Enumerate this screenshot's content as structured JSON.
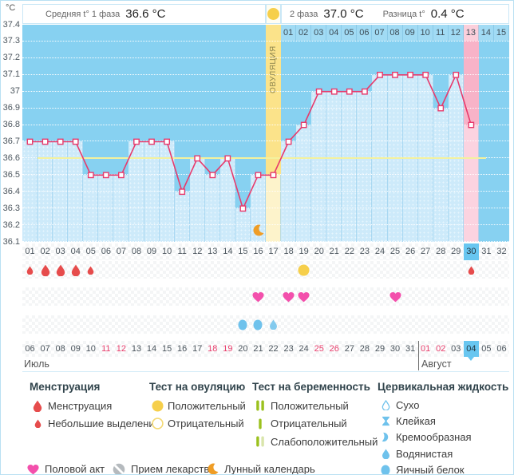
{
  "header": {
    "unit": "°C",
    "phase1_label": "Средняя t° 1 фаза",
    "phase1_value": "36.6 °C",
    "phase2_label": "2 фаза",
    "phase2_value": "37.0 °C",
    "diff_label": "Разница t°",
    "diff_value": "0.4 °C",
    "ovulation_label": "ОВУЛЯЦИЯ"
  },
  "chart_data": {
    "type": "line",
    "ylabel": "°C",
    "ylim": [
      36.1,
      37.4
    ],
    "yticks": [
      "37.4",
      "37.3",
      "37.2",
      "37.1",
      "37",
      "36.9",
      "36.8",
      "36.7",
      "36.6",
      "36.5",
      "36.4",
      "36.3",
      "36.2",
      "36.1"
    ],
    "grid": true,
    "days": [
      "01",
      "02",
      "03",
      "04",
      "05",
      "06",
      "07",
      "08",
      "09",
      "10",
      "11",
      "12",
      "13",
      "14",
      "15",
      "16",
      "17",
      "18",
      "19",
      "20",
      "21",
      "22",
      "23",
      "24",
      "25",
      "26",
      "27",
      "28",
      "29",
      "30",
      "31",
      "32"
    ],
    "temperatures": [
      36.7,
      36.7,
      36.7,
      36.7,
      36.5,
      36.5,
      36.5,
      36.7,
      36.7,
      36.7,
      36.4,
      36.6,
      36.5,
      36.6,
      36.3,
      36.5,
      36.5,
      36.7,
      36.8,
      37.0,
      37.0,
      37.0,
      37.0,
      37.1,
      37.1,
      37.1,
      37.1,
      36.9,
      37.1,
      36.8,
      null,
      null
    ],
    "coverline": 36.6,
    "phase1_avg": 36.6,
    "phase2_avg": 37.0,
    "phase_difference": 0.4,
    "ovulation_day": 17,
    "menstruation_forecast_day": 30,
    "current_cycle_day": 30,
    "moon_calendar_day": 16,
    "phase2_day_labels": [
      "01",
      "02",
      "03",
      "04",
      "05",
      "06",
      "07",
      "08",
      "09",
      "10",
      "11",
      "12",
      "13",
      "14",
      "15"
    ],
    "phase2_highlight_label": "13"
  },
  "events": {
    "menstruation": [
      {
        "day": 1,
        "size": "small"
      },
      {
        "day": 2,
        "size": "big"
      },
      {
        "day": 3,
        "size": "big"
      },
      {
        "day": 4,
        "size": "big"
      },
      {
        "day": 5,
        "size": "small"
      },
      {
        "day": 30,
        "size": "small"
      }
    ],
    "ovulation_test_positive": [
      19
    ],
    "intercourse": [
      16,
      18,
      19,
      25
    ],
    "cervical_fluid": [
      {
        "day": 15,
        "type": "egg-white"
      },
      {
        "day": 16,
        "type": "egg-white"
      },
      {
        "day": 17,
        "type": "watery"
      }
    ]
  },
  "calendar": {
    "july_label": "Июль",
    "august_label": "Август",
    "dates": [
      {
        "label": "06"
      },
      {
        "label": "07"
      },
      {
        "label": "08"
      },
      {
        "label": "09"
      },
      {
        "label": "10"
      },
      {
        "label": "11",
        "weekend": true
      },
      {
        "label": "12",
        "weekend": true
      },
      {
        "label": "13"
      },
      {
        "label": "14"
      },
      {
        "label": "15"
      },
      {
        "label": "16"
      },
      {
        "label": "17"
      },
      {
        "label": "18",
        "weekend": true
      },
      {
        "label": "19",
        "weekend": true
      },
      {
        "label": "20"
      },
      {
        "label": "21"
      },
      {
        "label": "22"
      },
      {
        "label": "23"
      },
      {
        "label": "24"
      },
      {
        "label": "25",
        "weekend": true
      },
      {
        "label": "26",
        "weekend": true
      },
      {
        "label": "27"
      },
      {
        "label": "28"
      },
      {
        "label": "29"
      },
      {
        "label": "30"
      },
      {
        "label": "31"
      },
      {
        "label": "01",
        "weekend": true
      },
      {
        "label": "02",
        "weekend": true
      },
      {
        "label": "03"
      },
      {
        "label": "04",
        "today": true
      },
      {
        "label": "05"
      },
      {
        "label": "06"
      }
    ]
  },
  "legend": {
    "groups": [
      {
        "title": "Менструация",
        "items": [
          {
            "icon": "menstruation-drop-big",
            "label": "Менструация"
          },
          {
            "icon": "menstruation-drop-small",
            "label": "Небольшие выделения"
          }
        ]
      },
      {
        "title": "Тест на овуляцию",
        "items": [
          {
            "icon": "ovulation-test-positive",
            "label": "Положительный"
          },
          {
            "icon": "ovulation-test-negative",
            "label": "Отрицательный"
          }
        ]
      },
      {
        "title": "Тест на беременность",
        "items": [
          {
            "icon": "pregnancy-test-positive",
            "label": "Положительный"
          },
          {
            "icon": "pregnancy-test-negative",
            "label": "Отрицательный"
          },
          {
            "icon": "pregnancy-test-weak",
            "label": "Слабоположительный"
          }
        ]
      },
      {
        "title": "Цервикальная жидкость",
        "items": [
          {
            "icon": "fluid-dry",
            "label": "Сухо"
          },
          {
            "icon": "fluid-sticky",
            "label": "Клейкая"
          },
          {
            "icon": "fluid-creamy",
            "label": "Кремообразная"
          },
          {
            "icon": "fluid-watery",
            "label": "Водянистая"
          },
          {
            "icon": "fluid-egg-white",
            "label": "Яичный белок"
          }
        ]
      }
    ],
    "footer": [
      {
        "icon": "intercourse-heart",
        "label": "Половой акт"
      },
      {
        "icon": "medication-pill",
        "label": "Прием лекарств"
      },
      {
        "icon": "moon-calendar",
        "label": "Лунный календарь"
      }
    ]
  },
  "colors": {
    "line": "#e73a6c",
    "chart_bg": "#87d1f1",
    "column_fill": "#cdeafa",
    "ovulation_column": "#fbe38a",
    "ovulation_column_light": "#fdf3cb",
    "pink_column": "#f7b3c8",
    "pink_column_light": "#fbd3e0",
    "coverline": "#f4f19e",
    "highlight_cell": "#68c6f0",
    "weekend_red": "#e93f6d",
    "menses_red": "#e64c4c",
    "heart_pink": "#f350ac",
    "test_yellow": "#f6cf4b",
    "fluid_blue": "#6fc2ec",
    "pregnancy_green": "#9bc11e",
    "pregnancy_green_pale": "#d9e5ab",
    "moon_orange": "#ef9d26",
    "pill_gray": "#b5babe"
  }
}
